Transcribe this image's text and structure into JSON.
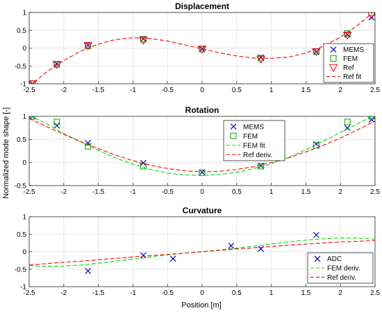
{
  "figure": {
    "ylabel": "Normalized mode shape [-]",
    "xlabel": "Position [m]"
  },
  "chart_data": [
    {
      "type": "scatter",
      "title": "Displacement",
      "xlim": [
        -2.5,
        2.5
      ],
      "ylim": [
        -1,
        1
      ],
      "xticks": [
        "-2.5",
        "-2",
        "-1.5",
        "-1",
        "-0.5",
        "0",
        "0.5",
        "1",
        "1.5",
        "2",
        "2.5"
      ],
      "yticks": [
        "-1",
        "-0.5",
        "0",
        "0.5",
        "1"
      ],
      "grid": true,
      "legend_position": "right",
      "series": [
        {
          "name": "MEMS",
          "marker": "x",
          "color": "#0000cc",
          "x": [
            -2.45,
            -2.1,
            -1.65,
            -0.85,
            0,
            0.85,
            1.65,
            2.1,
            2.45
          ],
          "y": [
            -1.0,
            -0.44,
            0.08,
            0.26,
            -0.02,
            -0.26,
            -0.1,
            0.38,
            0.86
          ]
        },
        {
          "name": "FEM",
          "marker": "square",
          "color": "#00a000",
          "x": [
            -2.45,
            -2.1,
            -1.65,
            -0.85,
            0,
            0.85,
            1.65,
            2.1,
            2.45
          ],
          "y": [
            -1.0,
            -0.46,
            0.06,
            0.25,
            -0.03,
            -0.28,
            -0.1,
            0.41,
            0.99
          ]
        },
        {
          "name": "Ref",
          "marker": "triangle-down",
          "color": "#ff0000",
          "x": [
            -2.45,
            -2.1,
            -1.65,
            -0.85,
            0,
            0.85,
            1.65,
            2.1,
            2.45
          ],
          "y": [
            -1.0,
            -0.46,
            0.07,
            0.22,
            -0.03,
            -0.31,
            -0.1,
            0.36,
            0.93
          ]
        },
        {
          "name": "Ref fit",
          "style": "dashed",
          "color": "#ff0000",
          "x": [
            -2.5,
            -2.25,
            -2,
            -1.75,
            -1.5,
            -1.25,
            -1,
            -0.75,
            -0.5,
            -0.25,
            0,
            0.25,
            0.5,
            0.75,
            1,
            1.25,
            1.5,
            1.75,
            2,
            2.25,
            2.5
          ],
          "y": [
            -1.07,
            -0.67,
            -0.35,
            -0.08,
            0.11,
            0.24,
            0.29,
            0.27,
            0.2,
            0.09,
            -0.02,
            -0.13,
            -0.22,
            -0.28,
            -0.29,
            -0.25,
            -0.14,
            0.05,
            0.31,
            0.64,
            1.05
          ]
        }
      ]
    },
    {
      "type": "scatter",
      "title": "Rotation",
      "xlim": [
        -2.5,
        2.5
      ],
      "ylim": [
        -0.5,
        1
      ],
      "xticks": [
        "-2.5",
        "-2",
        "-1.5",
        "-1",
        "-0.5",
        "0",
        "0.5",
        "1",
        "1.5",
        "2",
        "2.5"
      ],
      "yticks": [
        "-0.5",
        "0",
        "0.5",
        "1"
      ],
      "grid": true,
      "legend_position": "top-center",
      "series": [
        {
          "name": "MEMS",
          "marker": "x",
          "color": "#0000cc",
          "x": [
            -2.45,
            -2.1,
            -1.65,
            -0.85,
            0,
            0.85,
            1.65,
            2.1,
            2.45
          ],
          "y": [
            1.0,
            0.8,
            0.42,
            -0.01,
            -0.21,
            -0.07,
            0.4,
            0.75,
            0.93
          ]
        },
        {
          "name": "FEM",
          "marker": "square",
          "color": "#00a000",
          "x": [
            -2.45,
            -2.1,
            -1.65,
            -0.85,
            0,
            0.85,
            1.65,
            2.1,
            2.45
          ],
          "y": [
            1.0,
            0.88,
            0.35,
            -0.08,
            -0.22,
            -0.08,
            0.37,
            0.88,
            1.0
          ]
        },
        {
          "name": "FEM fit",
          "style": "dashed",
          "color": "#00dd00",
          "x": [
            -2.5,
            -2.25,
            -2,
            -1.75,
            -1.5,
            -1.25,
            -1,
            -0.75,
            -0.5,
            -0.25,
            0,
            0.25,
            0.5,
            0.75,
            1,
            1.25,
            1.5,
            1.75,
            2,
            2.25,
            2.5
          ],
          "y": [
            1.02,
            0.84,
            0.63,
            0.44,
            0.26,
            0.1,
            -0.04,
            -0.15,
            -0.23,
            -0.27,
            -0.28,
            -0.26,
            -0.21,
            -0.13,
            -0.03,
            0.11,
            0.28,
            0.46,
            0.65,
            0.84,
            1.03
          ]
        },
        {
          "name": "Ref deriv.",
          "style": "dashed",
          "color": "#ff0000",
          "x": [
            -2.5,
            -2.25,
            -2,
            -1.75,
            -1.5,
            -1.25,
            -1,
            -0.75,
            -0.5,
            -0.25,
            0,
            0.25,
            0.5,
            0.75,
            1,
            1.25,
            1.5,
            1.75,
            2,
            2.25,
            2.5
          ],
          "y": [
            0.95,
            0.78,
            0.61,
            0.45,
            0.3,
            0.16,
            0.04,
            -0.06,
            -0.13,
            -0.18,
            -0.2,
            -0.19,
            -0.15,
            -0.09,
            0.0,
            0.1,
            0.23,
            0.37,
            0.53,
            0.71,
            0.9
          ]
        }
      ]
    },
    {
      "type": "scatter",
      "title": "Curvature",
      "xlim": [
        -2.5,
        2.5
      ],
      "ylim": [
        -1,
        1
      ],
      "xticks": [
        "-2.5",
        "-2",
        "-1.5",
        "-1",
        "-0.5",
        "0",
        "0.5",
        "1",
        "1.5",
        "2",
        "2.5"
      ],
      "yticks": [
        "-1",
        "-0.5",
        "0",
        "0.5",
        "1"
      ],
      "grid": true,
      "legend_position": "bottom-right",
      "series": [
        {
          "name": "ADC",
          "marker": "x",
          "color": "#0000cc",
          "x": [
            -1.65,
            -0.85,
            -0.42,
            0.42,
            0.85,
            1.65
          ],
          "y": [
            -0.55,
            -0.1,
            -0.2,
            0.17,
            0.08,
            0.48
          ]
        },
        {
          "name": "FEM deriv.",
          "style": "dashed",
          "color": "#00dd00",
          "x": [
            -2.5,
            -2.25,
            -2,
            -1.75,
            -1.5,
            -1.25,
            -1,
            -0.75,
            -0.5,
            -0.25,
            0,
            0.25,
            0.5,
            0.75,
            1,
            1.25,
            1.5,
            1.75,
            2,
            2.25,
            2.5
          ],
          "y": [
            -0.4,
            -0.42,
            -0.41,
            -0.38,
            -0.33,
            -0.27,
            -0.21,
            -0.15,
            -0.09,
            -0.04,
            0.0,
            0.05,
            0.1,
            0.16,
            0.22,
            0.28,
            0.33,
            0.37,
            0.39,
            0.39,
            0.36
          ]
        },
        {
          "name": "Ref deriv.",
          "style": "dashed",
          "color": "#ff0000",
          "x": [
            -2.5,
            -2.25,
            -2,
            -1.75,
            -1.5,
            -1.25,
            -1,
            -0.75,
            -0.5,
            -0.25,
            0,
            0.25,
            0.5,
            0.75,
            1,
            1.25,
            1.5,
            1.75,
            2,
            2.25,
            2.5
          ],
          "y": [
            -0.38,
            -0.34,
            -0.3,
            -0.27,
            -0.23,
            -0.19,
            -0.15,
            -0.11,
            -0.08,
            -0.04,
            0.0,
            0.04,
            0.08,
            0.11,
            0.15,
            0.19,
            0.22,
            0.25,
            0.28,
            0.3,
            0.32
          ]
        }
      ]
    }
  ]
}
